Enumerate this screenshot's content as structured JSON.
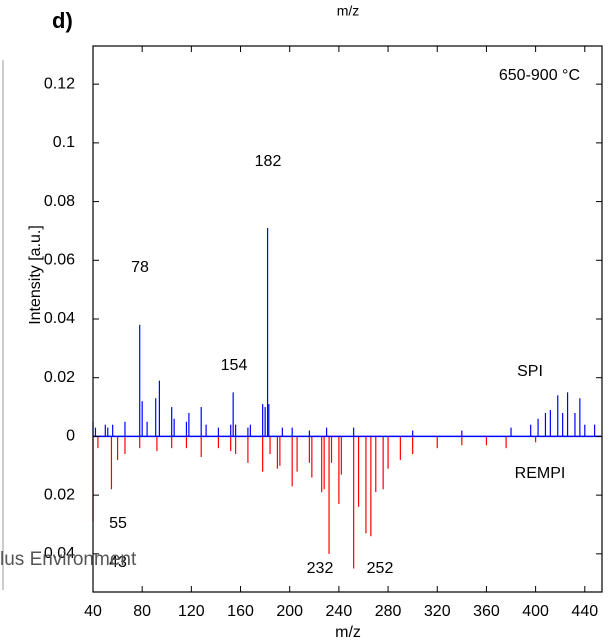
{
  "chart_data": {
    "type": "mirror-stick",
    "panel_label": "d)",
    "top_label": "m/z",
    "x_label": "m/z",
    "y_label": "Intensity [a.u.]",
    "condition": "650-900 °C",
    "watermark": "lus Environment",
    "xlim": [
      40,
      454
    ],
    "ylim": [
      -0.053,
      0.133
    ],
    "xticks": [
      40,
      80,
      120,
      160,
      200,
      240,
      280,
      320,
      360,
      400,
      440
    ],
    "yticks": [
      {
        "value": -0.04,
        "label": "0.04"
      },
      {
        "value": -0.02,
        "label": "0.02"
      },
      0,
      0.02,
      0.04,
      0.06,
      0.08,
      0.1,
      0.12
    ],
    "series": [
      {
        "name": "SPI",
        "color": "#0000ff",
        "x": [
          40,
          42,
          50,
          52,
          56,
          66,
          78,
          80,
          84,
          91,
          94,
          104,
          106,
          116,
          118,
          128,
          132,
          142,
          152,
          154,
          156,
          166,
          168,
          178,
          180,
          182,
          183,
          194,
          202,
          216,
          230,
          252,
          300,
          340,
          380,
          396,
          402,
          408,
          412,
          418,
          422,
          426,
          432,
          436,
          440,
          448
        ],
        "values": [
          0.005,
          0.003,
          0.004,
          0.003,
          0.004,
          0.005,
          0.038,
          0.012,
          0.005,
          0.013,
          0.019,
          0.01,
          0.006,
          0.005,
          0.008,
          0.01,
          0.004,
          0.003,
          0.004,
          0.015,
          0.004,
          0.003,
          0.004,
          0.011,
          0.01,
          0.071,
          0.011,
          0.003,
          0.003,
          0.002,
          0.003,
          0.003,
          0.002,
          0.002,
          0.003,
          0.004,
          0.006,
          0.008,
          0.009,
          0.014,
          0.008,
          0.015,
          0.008,
          0.013,
          0.004,
          0.004
        ]
      },
      {
        "name": "REMPI",
        "color": "#ff0000",
        "x": [
          40,
          44,
          55,
          60,
          66,
          78,
          92,
          104,
          116,
          128,
          142,
          152,
          156,
          166,
          178,
          184,
          190,
          192,
          202,
          206,
          216,
          218,
          226,
          228,
          232,
          234,
          240,
          242,
          252,
          256,
          262,
          266,
          270,
          276,
          280,
          290,
          300,
          320,
          340,
          360,
          376,
          400
        ],
        "values": [
          -0.029,
          -0.004,
          -0.018,
          -0.008,
          -0.006,
          -0.004,
          -0.005,
          -0.004,
          -0.004,
          -0.007,
          -0.004,
          -0.005,
          -0.006,
          -0.009,
          -0.012,
          -0.006,
          -0.011,
          -0.01,
          -0.017,
          -0.012,
          -0.009,
          -0.014,
          -0.019,
          -0.018,
          -0.04,
          -0.009,
          -0.023,
          -0.013,
          -0.045,
          -0.024,
          -0.033,
          -0.034,
          -0.019,
          -0.018,
          -0.011,
          -0.008,
          -0.006,
          -0.004,
          -0.003,
          -0.003,
          -0.004,
          -0.002
        ]
      }
    ],
    "peak_labels": [
      "182",
      "78",
      "154",
      "55",
      "43",
      "232",
      "252"
    ]
  }
}
